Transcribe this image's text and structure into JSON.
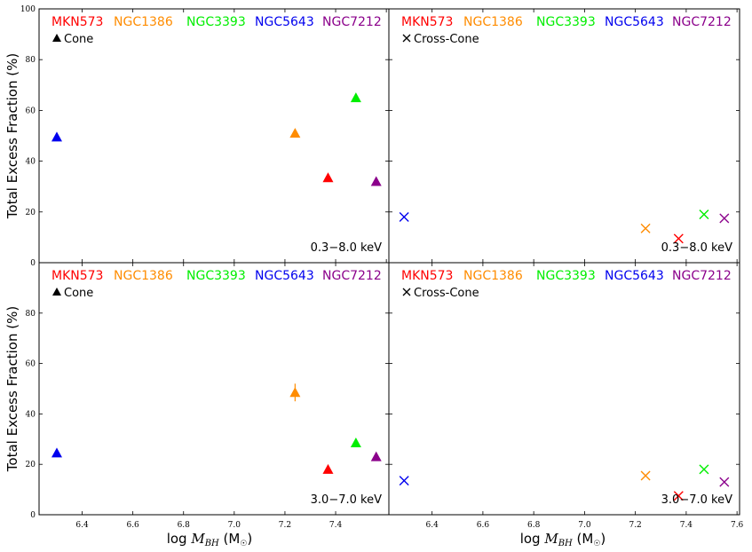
{
  "figure": {
    "ylabel": "Total Excess Fraction (%)",
    "xlabel_prefix": "log ",
    "xlabel_var": "M",
    "xlabel_sub": "BH",
    "xlabel_unit_open": " (M",
    "xlabel_unit_sub": "☉",
    "xlabel_unit_close": ")"
  },
  "legend_galaxies": [
    {
      "name": "MKN573",
      "color": "#ff0000"
    },
    {
      "name": "NGC1386",
      "color": "#ff8c00"
    },
    {
      "name": "NGC3393",
      "color": "#00ee00"
    },
    {
      "name": "NGC5643",
      "color": "#0000ee"
    },
    {
      "name": "NGC7212",
      "color": "#8b008b"
    }
  ],
  "chart_data": [
    {
      "type": "scatter",
      "panel": "top-left",
      "marker": "triangle",
      "marker_label": "Cone",
      "energy_label": "0.3−8.0 keV",
      "xlim": [
        6.23,
        7.61
      ],
      "ylim": [
        0,
        100
      ],
      "xticks": [
        6.4,
        6.6,
        6.8,
        7.0,
        7.2,
        7.4,
        7.6
      ],
      "yticks": [
        0,
        20,
        40,
        60,
        80,
        100
      ],
      "show_xticklabels": false,
      "show_yticklabels": true,
      "show_100_label": true,
      "series": [
        {
          "name": "MKN573",
          "color": "#ff0000",
          "x": 7.37,
          "y": 33.5,
          "err": 0
        },
        {
          "name": "NGC1386",
          "color": "#ff8c00",
          "x": 7.24,
          "y": 51,
          "err": 0
        },
        {
          "name": "NGC3393",
          "color": "#00ee00",
          "x": 7.48,
          "y": 65,
          "err": 0
        },
        {
          "name": "NGC5643",
          "color": "#0000ee",
          "x": 6.3,
          "y": 49.5,
          "err": 0
        },
        {
          "name": "NGC7212",
          "color": "#8b008b",
          "x": 7.56,
          "y": 32,
          "err": 0
        }
      ]
    },
    {
      "type": "scatter",
      "panel": "top-right",
      "marker": "x",
      "marker_label": "Cross-Cone",
      "energy_label": "0.3−8.0 keV",
      "xlim": [
        6.23,
        7.61
      ],
      "ylim": [
        0,
        100
      ],
      "xticks": [
        6.4,
        6.6,
        6.8,
        7.0,
        7.2,
        7.4,
        7.6
      ],
      "yticks": [
        0,
        20,
        40,
        60,
        80,
        100
      ],
      "show_xticklabels": false,
      "show_yticklabels": false,
      "show_100_label": false,
      "series": [
        {
          "name": "MKN573",
          "color": "#ff0000",
          "x": 7.37,
          "y": 9.5,
          "err": 0
        },
        {
          "name": "NGC1386",
          "color": "#ff8c00",
          "x": 7.24,
          "y": 13.5,
          "err": 0
        },
        {
          "name": "NGC3393",
          "color": "#00ee00",
          "x": 7.47,
          "y": 19,
          "err": 0
        },
        {
          "name": "NGC5643",
          "color": "#0000ee",
          "x": 6.29,
          "y": 18,
          "err": 0
        },
        {
          "name": "NGC7212",
          "color": "#8b008b",
          "x": 7.55,
          "y": 17.5,
          "err": 0
        }
      ]
    },
    {
      "type": "scatter",
      "panel": "bottom-left",
      "marker": "triangle",
      "marker_label": "Cone",
      "energy_label": "3.0−7.0 keV",
      "xlim": [
        6.23,
        7.61
      ],
      "ylim": [
        0,
        100
      ],
      "xticks": [
        6.4,
        6.6,
        6.8,
        7.0,
        7.2,
        7.4
      ],
      "yticks": [
        0,
        20,
        40,
        60,
        80
      ],
      "show_xticklabels": true,
      "show_yticklabels": true,
      "show_100_label": false,
      "series": [
        {
          "name": "MKN573",
          "color": "#ff0000",
          "x": 7.37,
          "y": 18,
          "err": 0
        },
        {
          "name": "NGC1386",
          "color": "#ff8c00",
          "x": 7.24,
          "y": 48.5,
          "err": 3.5
        },
        {
          "name": "NGC3393",
          "color": "#00ee00",
          "x": 7.48,
          "y": 28.5,
          "err": 0
        },
        {
          "name": "NGC5643",
          "color": "#0000ee",
          "x": 6.3,
          "y": 24.5,
          "err": 0
        },
        {
          "name": "NGC7212",
          "color": "#8b008b",
          "x": 7.56,
          "y": 23,
          "err": 0
        }
      ]
    },
    {
      "type": "scatter",
      "panel": "bottom-right",
      "marker": "x",
      "marker_label": "Cross-Cone",
      "energy_label": "3.0−7.0 keV",
      "xlim": [
        6.23,
        7.61
      ],
      "ylim": [
        0,
        100
      ],
      "xticks": [
        6.4,
        6.6,
        6.8,
        7.0,
        7.2,
        7.4,
        7.6
      ],
      "yticks": [
        0,
        20,
        40,
        60,
        80
      ],
      "show_xticklabels": true,
      "show_yticklabels": false,
      "show_100_label": false,
      "series": [
        {
          "name": "MKN573",
          "color": "#ff0000",
          "x": 7.37,
          "y": 7.5,
          "err": 0
        },
        {
          "name": "NGC1386",
          "color": "#ff8c00",
          "x": 7.24,
          "y": 15.5,
          "err": 0
        },
        {
          "name": "NGC3393",
          "color": "#00ee00",
          "x": 7.47,
          "y": 18,
          "err": 0
        },
        {
          "name": "NGC5643",
          "color": "#0000ee",
          "x": 6.29,
          "y": 13.5,
          "err": 0
        },
        {
          "name": "NGC7212",
          "color": "#8b008b",
          "x": 7.55,
          "y": 13,
          "err": 0
        }
      ]
    }
  ]
}
